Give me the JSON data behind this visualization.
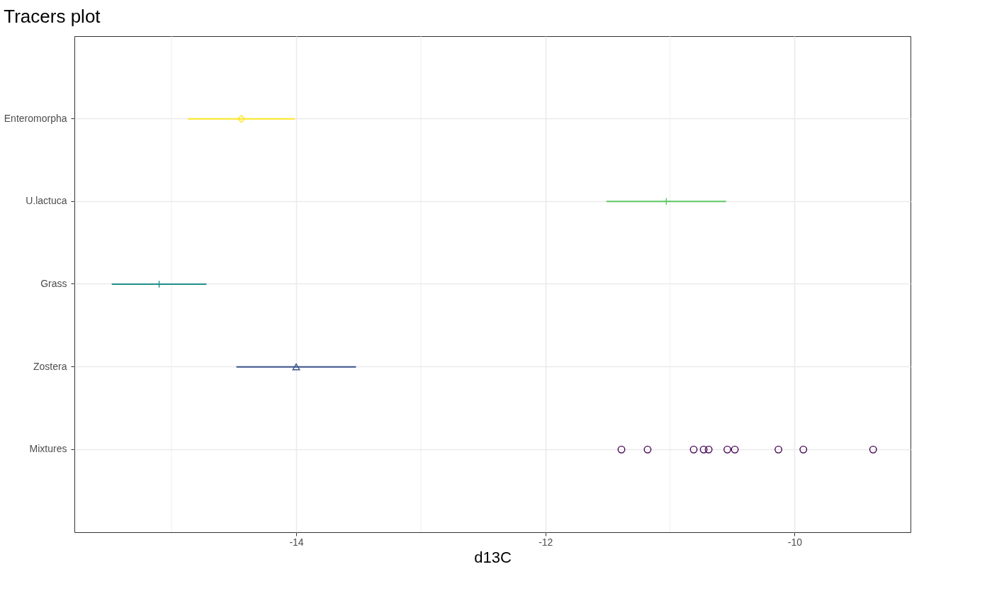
{
  "chart_data": {
    "type": "scatter",
    "title": "Tracers plot",
    "xlabel": "d13C",
    "orientation": "horizontal",
    "categories": [
      "Enteromorpha",
      "U.lactuca",
      "Grass",
      "Zostera",
      "Mixtures"
    ],
    "series": [
      {
        "color": "#440154",
        "marker": "circle",
        "x": [
          "Mixtures",
          "Mixtures",
          "Mixtures",
          "Mixtures",
          "Mixtures",
          "Mixtures",
          "Mixtures",
          "Mixtures",
          "Mixtures",
          "Mixtures"
        ],
        "values": [
          -11.39,
          -11.18,
          -10.81,
          -10.73,
          -10.69,
          -10.54,
          -10.48,
          -10.13,
          -9.93,
          -9.37
        ]
      },
      {
        "color": "#3b528b",
        "marker": "triangle",
        "x": [
          "Zostera"
        ],
        "values": [
          -14.0
        ],
        "errors": [
          0.48
        ]
      },
      {
        "color": "#21908c",
        "marker": "cross",
        "x": [
          "Grass"
        ],
        "values": [
          -15.1
        ],
        "errors": [
          0.38
        ]
      },
      {
        "color": "#5dc863",
        "marker": "cross",
        "x": [
          "U.lactuca"
        ],
        "values": [
          -11.03
        ],
        "errors": [
          0.48
        ]
      },
      {
        "color": "#fde725",
        "marker": "diamond",
        "x": [
          "Enteromorpha"
        ],
        "values": [
          -14.44
        ],
        "errors": [
          0.43
        ]
      }
    ],
    "xlim": [
      -15.78,
      -9.07
    ],
    "xticks": [
      {
        "value": -15,
        "label": null
      },
      -14,
      {
        "value": -13,
        "label": null
      },
      -12,
      {
        "value": -11,
        "label": null
      },
      -10
    ],
    "grid": true
  }
}
